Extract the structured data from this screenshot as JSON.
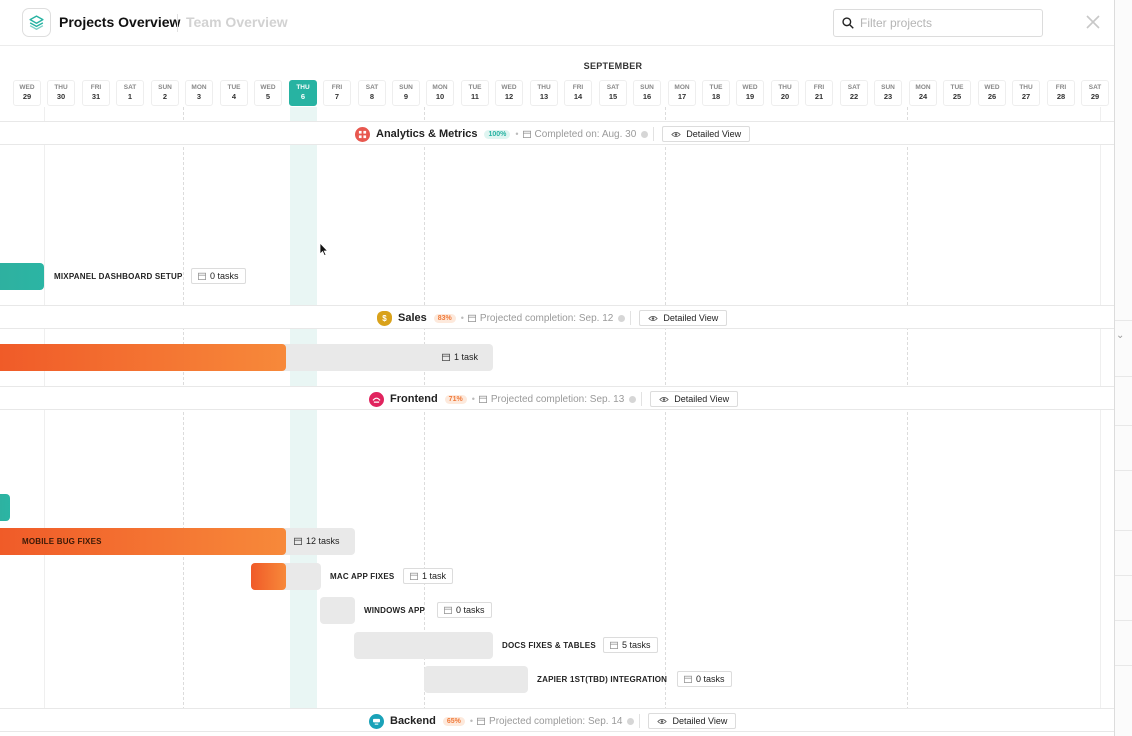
{
  "app": {
    "title": "Projects Overview",
    "secondary_title": "Team Overview",
    "search_placeholder": "Filter projects"
  },
  "timeline": {
    "month": "SEPTEMBER",
    "days": [
      {
        "dow": "WED",
        "num": "29"
      },
      {
        "dow": "THU",
        "num": "30"
      },
      {
        "dow": "FRI",
        "num": "31"
      },
      {
        "dow": "SAT",
        "num": "1"
      },
      {
        "dow": "SUN",
        "num": "2"
      },
      {
        "dow": "MON",
        "num": "3"
      },
      {
        "dow": "TUE",
        "num": "4"
      },
      {
        "dow": "WED",
        "num": "5"
      },
      {
        "dow": "THU",
        "num": "6",
        "today": true
      },
      {
        "dow": "FRI",
        "num": "7"
      },
      {
        "dow": "SAT",
        "num": "8"
      },
      {
        "dow": "SUN",
        "num": "9"
      },
      {
        "dow": "MON",
        "num": "10"
      },
      {
        "dow": "TUE",
        "num": "11"
      },
      {
        "dow": "WED",
        "num": "12"
      },
      {
        "dow": "THU",
        "num": "13"
      },
      {
        "dow": "FRI",
        "num": "14"
      },
      {
        "dow": "SAT",
        "num": "15"
      },
      {
        "dow": "SUN",
        "num": "16"
      },
      {
        "dow": "MON",
        "num": "17"
      },
      {
        "dow": "TUE",
        "num": "18"
      },
      {
        "dow": "WED",
        "num": "19"
      },
      {
        "dow": "THU",
        "num": "20"
      },
      {
        "dow": "FRI",
        "num": "21"
      },
      {
        "dow": "SAT",
        "num": "22"
      },
      {
        "dow": "SUN",
        "num": "23"
      },
      {
        "dow": "MON",
        "num": "24"
      },
      {
        "dow": "TUE",
        "num": "25"
      },
      {
        "dow": "WED",
        "num": "26"
      },
      {
        "dow": "THU",
        "num": "27"
      },
      {
        "dow": "FRI",
        "num": "28"
      },
      {
        "dow": "SAT",
        "num": "29"
      }
    ]
  },
  "projects": {
    "analytics": {
      "name": "Analytics & Metrics",
      "percent": "100%",
      "status": "Completed on: Aug. 30",
      "button": "Detailed View",
      "color": "#e8584f"
    },
    "sales": {
      "name": "Sales",
      "percent": "83%",
      "status": "Projected completion: Sep. 12",
      "button": "Detailed View",
      "color": "#d9a21b"
    },
    "frontend": {
      "name": "Frontend",
      "percent": "71%",
      "status": "Projected completion: Sep. 13",
      "button": "Detailed View",
      "color": "#e0245e"
    },
    "backend": {
      "name": "Backend",
      "percent": "65%",
      "status": "Projected completion: Sep. 14",
      "button": "Detailed View",
      "color": "#1aa2b8"
    }
  },
  "tasks": {
    "mixpanel": {
      "label": "MIXPANEL DASHBOARD SETUP",
      "count": "0 tasks"
    },
    "sales_bar": {
      "count": "1 task"
    },
    "mobile": {
      "label": "MOBILE BUG FIXES",
      "count": "12 tasks"
    },
    "mac": {
      "label": "MAC APP FIXES",
      "count": "1 task"
    },
    "windows": {
      "label": "WINDOWS APP",
      "count": "0 tasks"
    },
    "docs": {
      "label": "DOCS FIXES & TABLES",
      "count": "5 tasks"
    },
    "zapier": {
      "label": "ZAPIER 1ST(TBD) INTEGRATION",
      "count": "0 tasks"
    }
  },
  "colors": {
    "accent": "#27b3a2",
    "orange": "#f4742f",
    "teal": "#2bb5a4"
  }
}
